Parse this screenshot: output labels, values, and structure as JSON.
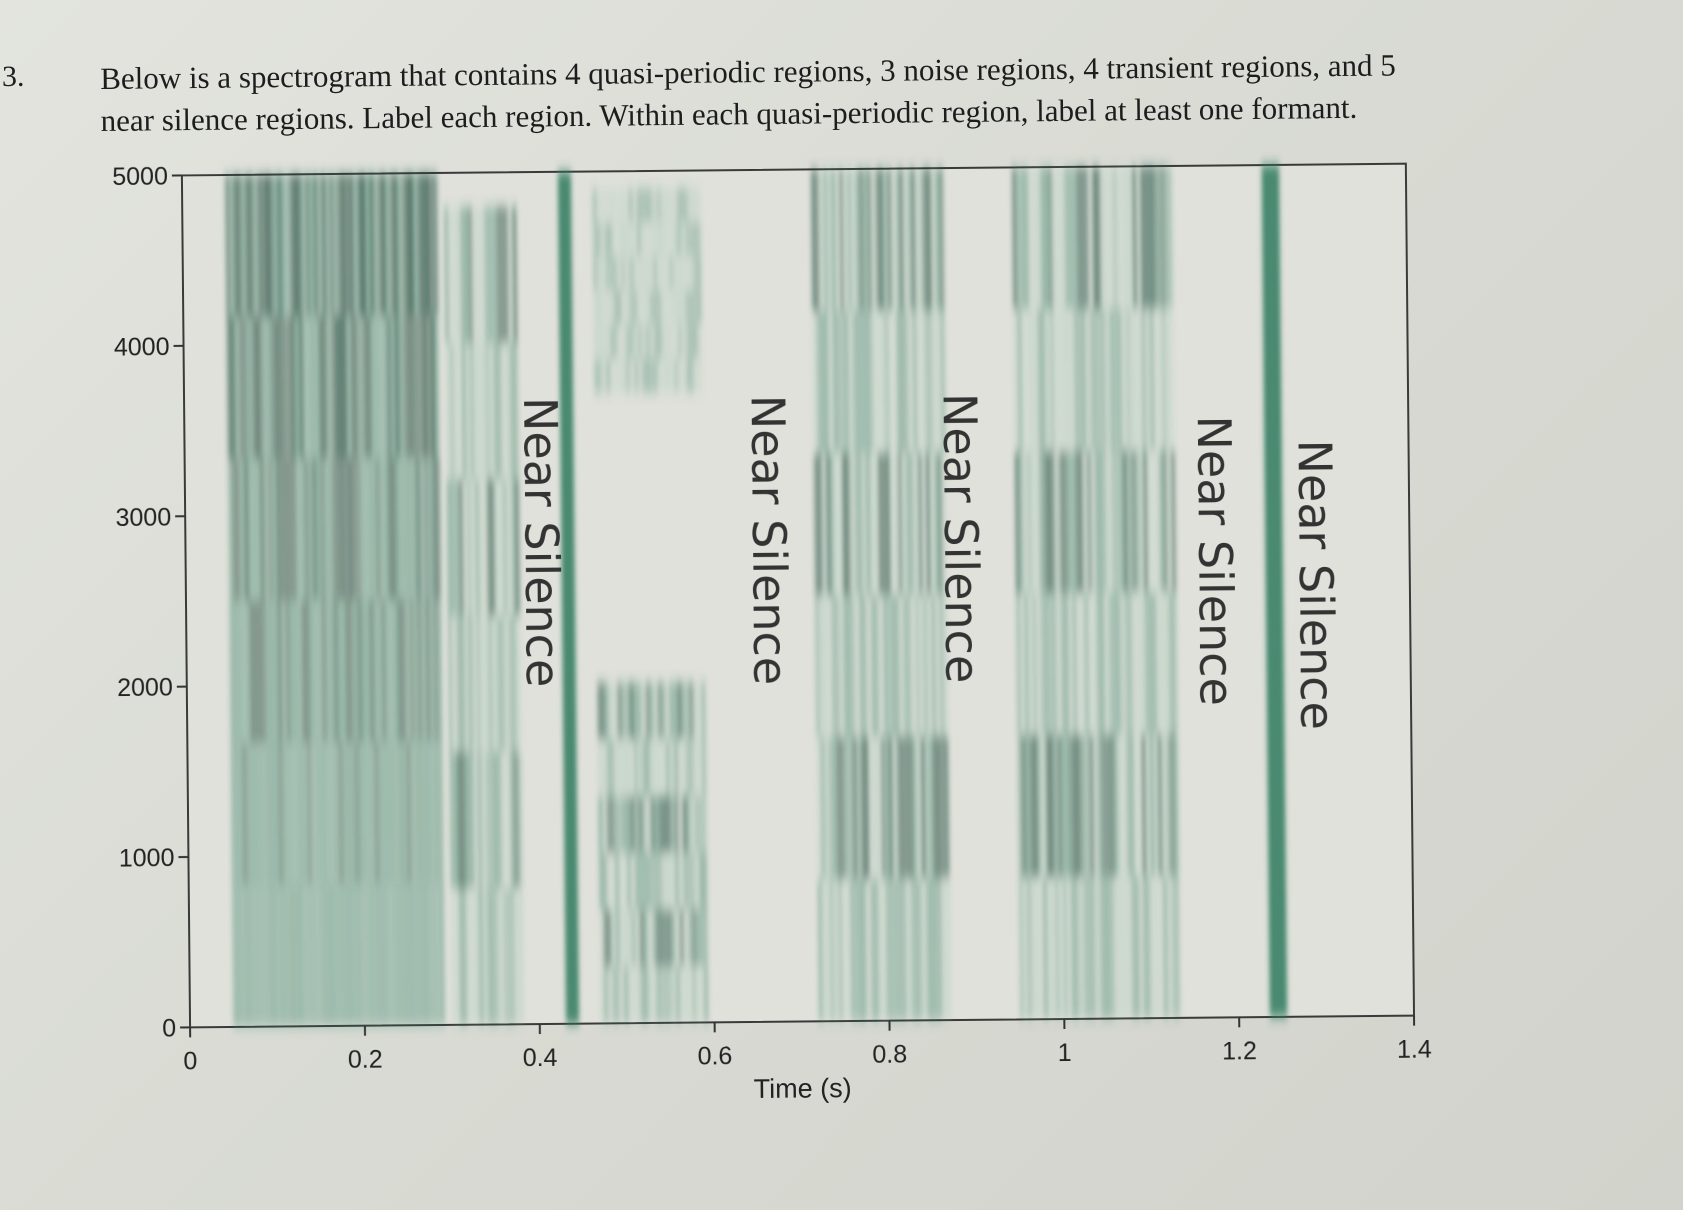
{
  "question": {
    "number": "3.",
    "line1": "Below is a spectrogram that contains 4 quasi-periodic regions, 3 noise regions, 4 transient regions, and 5",
    "line2": "near silence regions. Label each region.   Within each quasi-periodic region, label at least one formant."
  },
  "chart_data": {
    "type": "heatmap",
    "title": "",
    "xlabel": "Time (s)",
    "ylabel": "",
    "xlim": [
      0,
      1.4
    ],
    "ylim": [
      0,
      5000
    ],
    "x_ticks": [
      "0",
      "0.2",
      "0.4",
      "0.6",
      "0.8",
      "1",
      "1.2",
      "1.4"
    ],
    "y_ticks": [
      "0",
      "1000",
      "2000",
      "3000",
      "4000",
      "5000"
    ],
    "energy_regions": [
      {
        "t0": 0.05,
        "t1": 0.29,
        "f0": 0,
        "f1": 5000,
        "kind": "broadband"
      },
      {
        "t0": 0.3,
        "t1": 0.38,
        "f0": 0,
        "f1": 4800,
        "kind": "formant"
      },
      {
        "t0": 0.43,
        "t1": 0.445,
        "f0": 0,
        "f1": 5000,
        "kind": "spike"
      },
      {
        "t0": 0.47,
        "t1": 0.59,
        "f0": 3700,
        "f1": 4900,
        "kind": "noise"
      },
      {
        "t0": 0.47,
        "t1": 0.59,
        "f0": 0,
        "f1": 2000,
        "kind": "formant"
      },
      {
        "t0": 0.72,
        "t1": 0.87,
        "f0": 0,
        "f1": 5000,
        "kind": "formant"
      },
      {
        "t0": 0.95,
        "t1": 1.13,
        "f0": 0,
        "f1": 5000,
        "kind": "formant"
      },
      {
        "t0": 1.235,
        "t1": 1.255,
        "f0": 0,
        "f1": 5000,
        "kind": "spike"
      }
    ],
    "annotations": [
      {
        "text": "Near  Silence",
        "t": 0.405
      },
      {
        "text": "Near  Silence",
        "t": 0.665
      },
      {
        "text": "Near  Silence",
        "t": 0.885
      },
      {
        "text": "Near  Silence",
        "t": 1.175
      },
      {
        "text": "Near  Silence",
        "t": 1.29
      }
    ]
  },
  "colors": {
    "ink_dark": "#1b4a3a",
    "ink_mid": "#2f7a5e",
    "ink_light": "#7fb8a0",
    "paper": "#e1e2dc"
  }
}
